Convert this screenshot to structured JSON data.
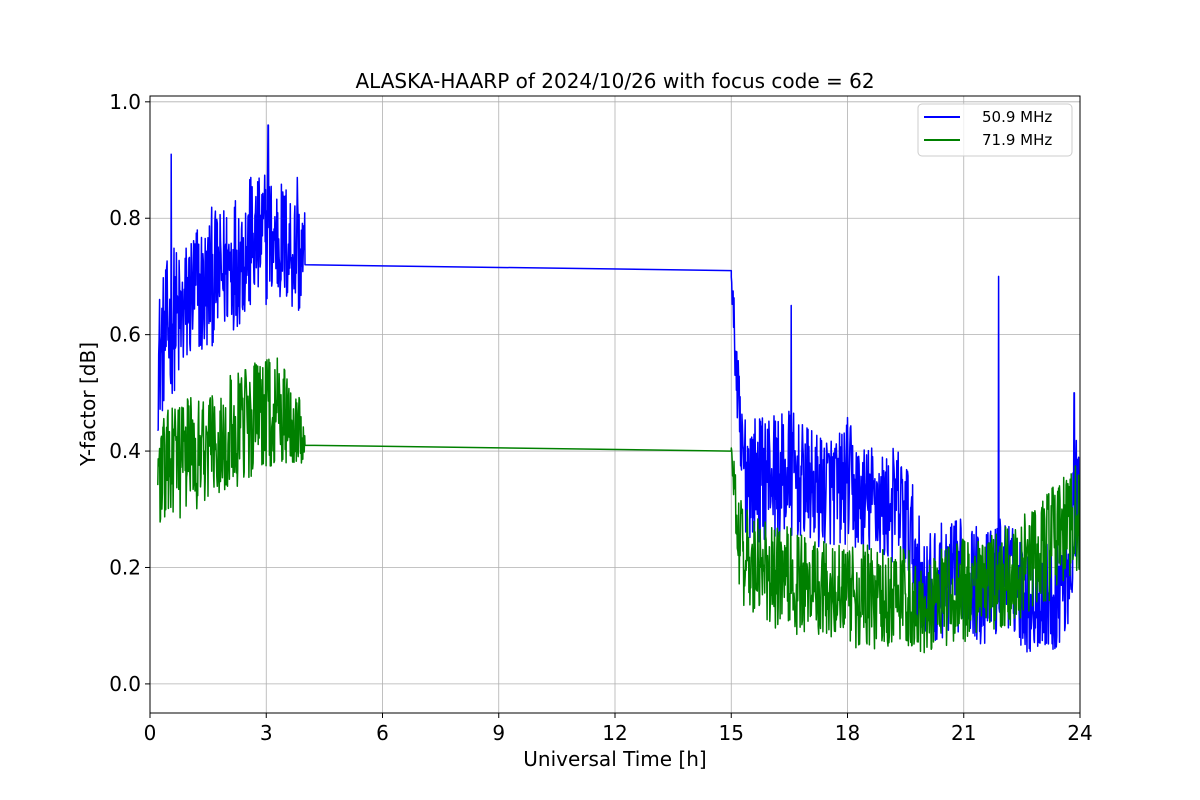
{
  "chart_data": {
    "type": "line",
    "title": "ALASKA-HAARP of 2024/10/26 with focus code = 62",
    "xlabel": "Universal Time [h]",
    "ylabel": "Y-factor [dB]",
    "xlim": [
      0,
      24
    ],
    "ylim": [
      -0.05,
      1.01
    ],
    "xticks": [
      0,
      3,
      6,
      9,
      12,
      15,
      18,
      21,
      24
    ],
    "yticks": [
      0.0,
      0.2,
      0.4,
      0.6,
      0.8,
      1.0
    ],
    "xtick_labels": [
      "0",
      "3",
      "6",
      "9",
      "12",
      "15",
      "18",
      "21",
      "24"
    ],
    "ytick_labels": [
      "0.0",
      "0.2",
      "0.4",
      "0.6",
      "0.8",
      "1.0"
    ],
    "grid": true,
    "legend_position": "top-right",
    "series": [
      {
        "name": "50.9 MHz",
        "color": "#0000ff",
        "x": [
          0.2,
          0.4,
          0.6,
          0.8,
          1.0,
          1.2,
          1.4,
          1.6,
          1.8,
          2.0,
          2.2,
          2.4,
          2.6,
          2.8,
          3.0,
          3.2,
          3.4,
          3.6,
          3.8,
          4.0,
          15.0,
          15.25,
          15.5,
          15.75,
          16.0,
          16.25,
          16.5,
          16.75,
          17.0,
          17.25,
          17.5,
          17.75,
          18.0,
          18.25,
          18.5,
          18.75,
          19.0,
          19.25,
          19.5,
          19.75,
          20.0,
          20.25,
          20.5,
          20.75,
          21.0,
          21.25,
          21.5,
          21.75,
          22.0,
          22.25,
          22.5,
          22.75,
          23.0,
          23.25,
          23.5,
          23.75,
          24.0
        ],
        "values": [
          0.55,
          0.6,
          0.63,
          0.62,
          0.66,
          0.68,
          0.67,
          0.7,
          0.7,
          0.72,
          0.73,
          0.74,
          0.75,
          0.76,
          0.77,
          0.76,
          0.76,
          0.75,
          0.74,
          0.72,
          0.71,
          0.38,
          0.36,
          0.35,
          0.37,
          0.35,
          0.36,
          0.35,
          0.34,
          0.33,
          0.34,
          0.33,
          0.35,
          0.32,
          0.31,
          0.32,
          0.3,
          0.31,
          0.29,
          0.22,
          0.16,
          0.17,
          0.18,
          0.18,
          0.19,
          0.18,
          0.16,
          0.17,
          0.2,
          0.18,
          0.16,
          0.14,
          0.15,
          0.15,
          0.17,
          0.22,
          0.33
        ],
        "noise": [
          0.12,
          0.12,
          0.13,
          0.12,
          0.12,
          0.12,
          0.12,
          0.12,
          0.11,
          0.12,
          0.12,
          0.12,
          0.12,
          0.11,
          0.12,
          0.11,
          0.11,
          0.11,
          0.11,
          0.1,
          0.02,
          0.12,
          0.11,
          0.11,
          0.11,
          0.11,
          0.12,
          0.1,
          0.1,
          0.1,
          0.1,
          0.1,
          0.11,
          0.1,
          0.1,
          0.1,
          0.1,
          0.1,
          0.11,
          0.1,
          0.09,
          0.1,
          0.1,
          0.1,
          0.1,
          0.1,
          0.1,
          0.1,
          0.1,
          0.09,
          0.1,
          0.09,
          0.09,
          0.1,
          0.1,
          0.12,
          0.14
        ],
        "spikes": [
          [
            0.55,
            0.91
          ],
          [
            2.6,
            0.87
          ],
          [
            3.05,
            0.96
          ],
          [
            3.8,
            0.87
          ],
          [
            16.55,
            0.65
          ],
          [
            21.9,
            0.7
          ],
          [
            23.85,
            0.5
          ]
        ]
      },
      {
        "name": "71.9 MHz",
        "color": "#008000",
        "x": [
          0.2,
          0.4,
          0.6,
          0.8,
          1.0,
          1.2,
          1.4,
          1.6,
          1.8,
          2.0,
          2.2,
          2.4,
          2.6,
          2.8,
          3.0,
          3.2,
          3.4,
          3.6,
          3.8,
          4.0,
          15.0,
          15.25,
          15.5,
          15.75,
          16.0,
          16.25,
          16.5,
          16.75,
          17.0,
          17.25,
          17.5,
          17.75,
          18.0,
          18.25,
          18.5,
          18.75,
          19.0,
          19.25,
          19.5,
          19.75,
          20.0,
          20.25,
          20.5,
          20.75,
          21.0,
          21.25,
          21.5,
          21.75,
          22.0,
          22.25,
          22.5,
          22.75,
          23.0,
          23.25,
          23.5,
          23.75,
          24.0
        ],
        "values": [
          0.36,
          0.37,
          0.38,
          0.38,
          0.4,
          0.4,
          0.41,
          0.42,
          0.42,
          0.43,
          0.43,
          0.44,
          0.45,
          0.46,
          0.46,
          0.46,
          0.46,
          0.46,
          0.45,
          0.41,
          0.4,
          0.22,
          0.2,
          0.2,
          0.19,
          0.18,
          0.18,
          0.17,
          0.17,
          0.17,
          0.16,
          0.16,
          0.16,
          0.15,
          0.15,
          0.15,
          0.15,
          0.15,
          0.15,
          0.14,
          0.13,
          0.14,
          0.15,
          0.15,
          0.16,
          0.16,
          0.17,
          0.17,
          0.18,
          0.19,
          0.2,
          0.21,
          0.22,
          0.24,
          0.26,
          0.27,
          0.29
        ],
        "noise": [
          0.1,
          0.1,
          0.1,
          0.1,
          0.1,
          0.1,
          0.1,
          0.09,
          0.1,
          0.1,
          0.1,
          0.1,
          0.1,
          0.1,
          0.1,
          0.1,
          0.1,
          0.09,
          0.09,
          0.02,
          0.02,
          0.1,
          0.1,
          0.09,
          0.09,
          0.09,
          0.09,
          0.09,
          0.09,
          0.09,
          0.08,
          0.08,
          0.09,
          0.09,
          0.09,
          0.09,
          0.09,
          0.09,
          0.09,
          0.09,
          0.08,
          0.08,
          0.09,
          0.09,
          0.09,
          0.08,
          0.08,
          0.09,
          0.09,
          0.09,
          0.09,
          0.09,
          0.1,
          0.1,
          0.1,
          0.1,
          0.1
        ]
      }
    ]
  }
}
